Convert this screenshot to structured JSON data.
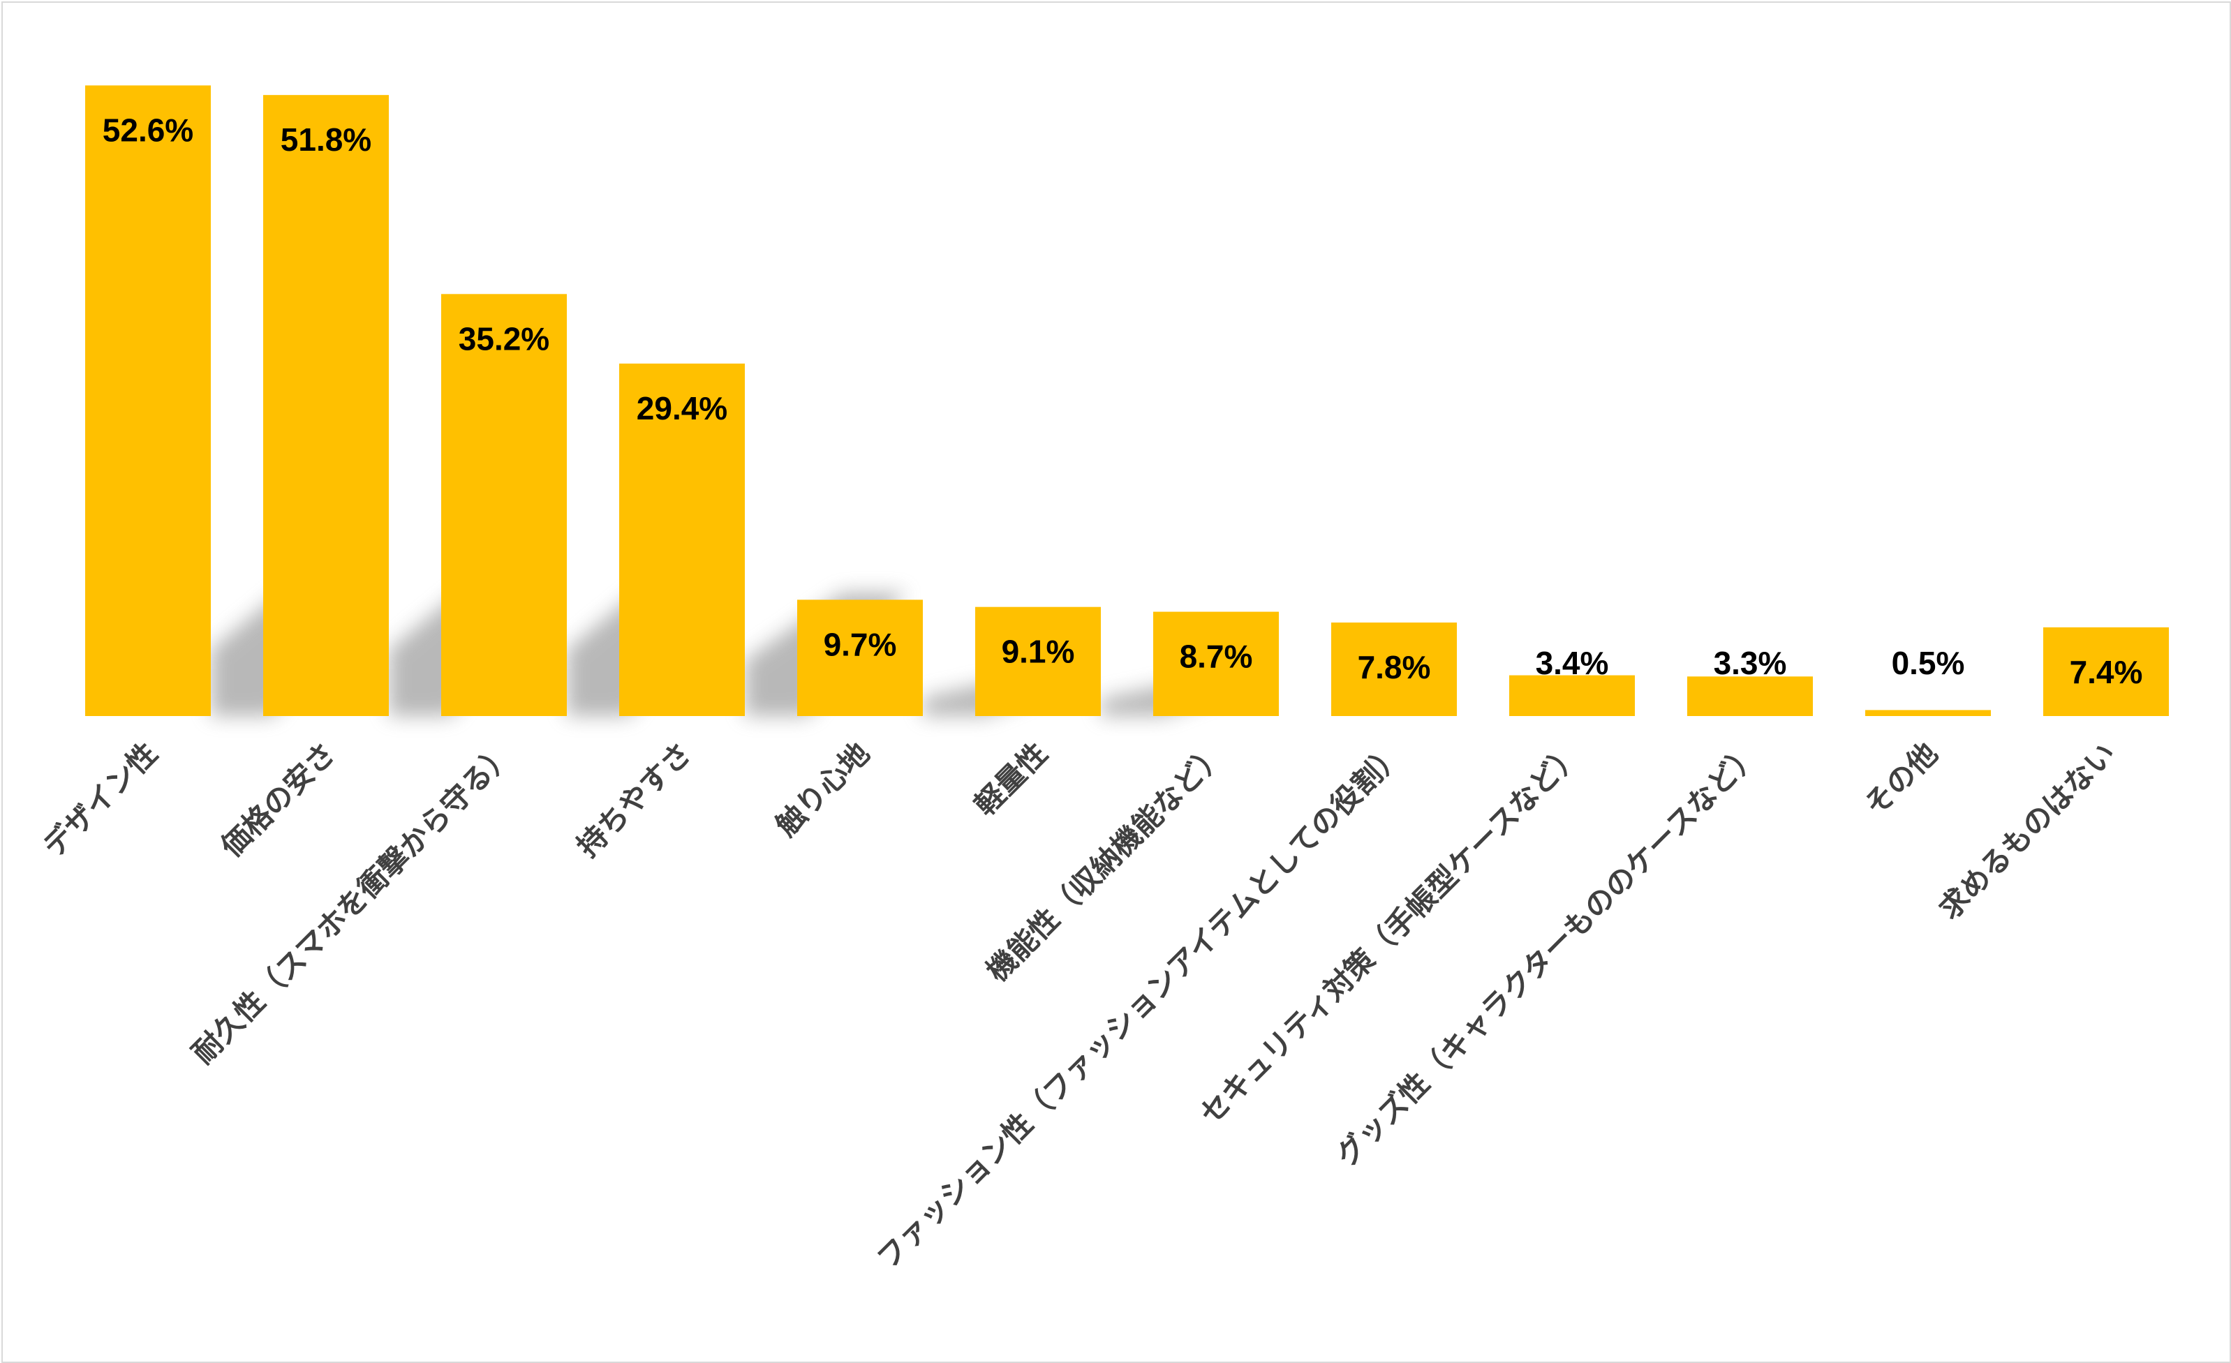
{
  "chart_data": {
    "type": "bar",
    "title": "",
    "xlabel": "",
    "ylabel": "",
    "ylim": [
      0,
      56
    ],
    "grid": false,
    "legend": "none",
    "bar_color": "#FFC000",
    "label_color": "#000000",
    "category_color": "#404040",
    "categories": [
      "デザイン性",
      "価格の安さ",
      "耐久性（スマホを衝撃から守る）",
      "持ちやすさ",
      "触り心地",
      "軽量性",
      "機能性（収納機能など）",
      "ファッション性（ファッションアイテムとしての役割）",
      "セキュリティ対策（手帳型ケースなど）",
      "グッズ性（キャラクターもののケースなど）",
      "その他",
      "求めるものはない"
    ],
    "values": [
      52.6,
      51.8,
      35.2,
      29.4,
      9.7,
      9.1,
      8.7,
      7.8,
      3.4,
      3.3,
      0.5,
      7.4
    ],
    "value_labels": [
      "52.6%",
      "51.8%",
      "35.2%",
      "29.4%",
      "9.7%",
      "9.1%",
      "8.7%",
      "7.8%",
      "3.4%",
      "3.3%",
      "0.5%",
      "7.4%"
    ]
  }
}
